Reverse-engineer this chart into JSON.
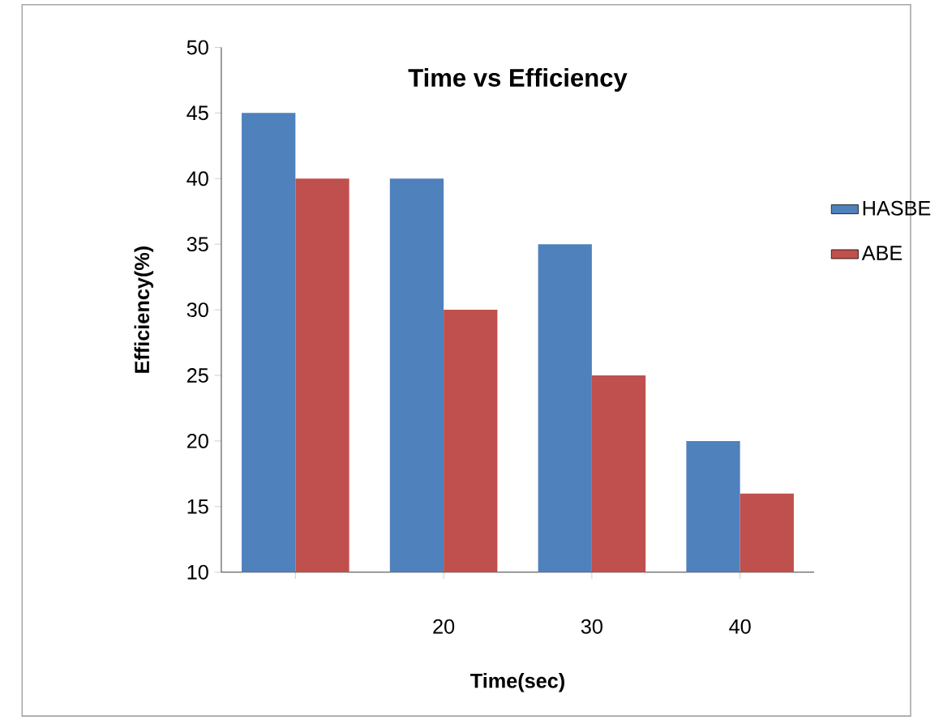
{
  "chart_data": {
    "type": "bar",
    "title": "Time vs Efficiency",
    "xlabel": "Time(sec)",
    "ylabel": "Efficiency(%)",
    "categories": [
      null,
      "20",
      "30",
      "40"
    ],
    "series": [
      {
        "name": "HASBE",
        "color": "#4f81bd",
        "values": [
          45,
          40,
          35,
          20
        ]
      },
      {
        "name": "ABE",
        "color": "#c0504d",
        "values": [
          40,
          30,
          25,
          16
        ]
      }
    ],
    "ylim": [
      10,
      50
    ],
    "yticks": [
      10,
      15,
      20,
      25,
      30,
      35,
      40,
      45,
      50
    ],
    "legend": "right"
  }
}
